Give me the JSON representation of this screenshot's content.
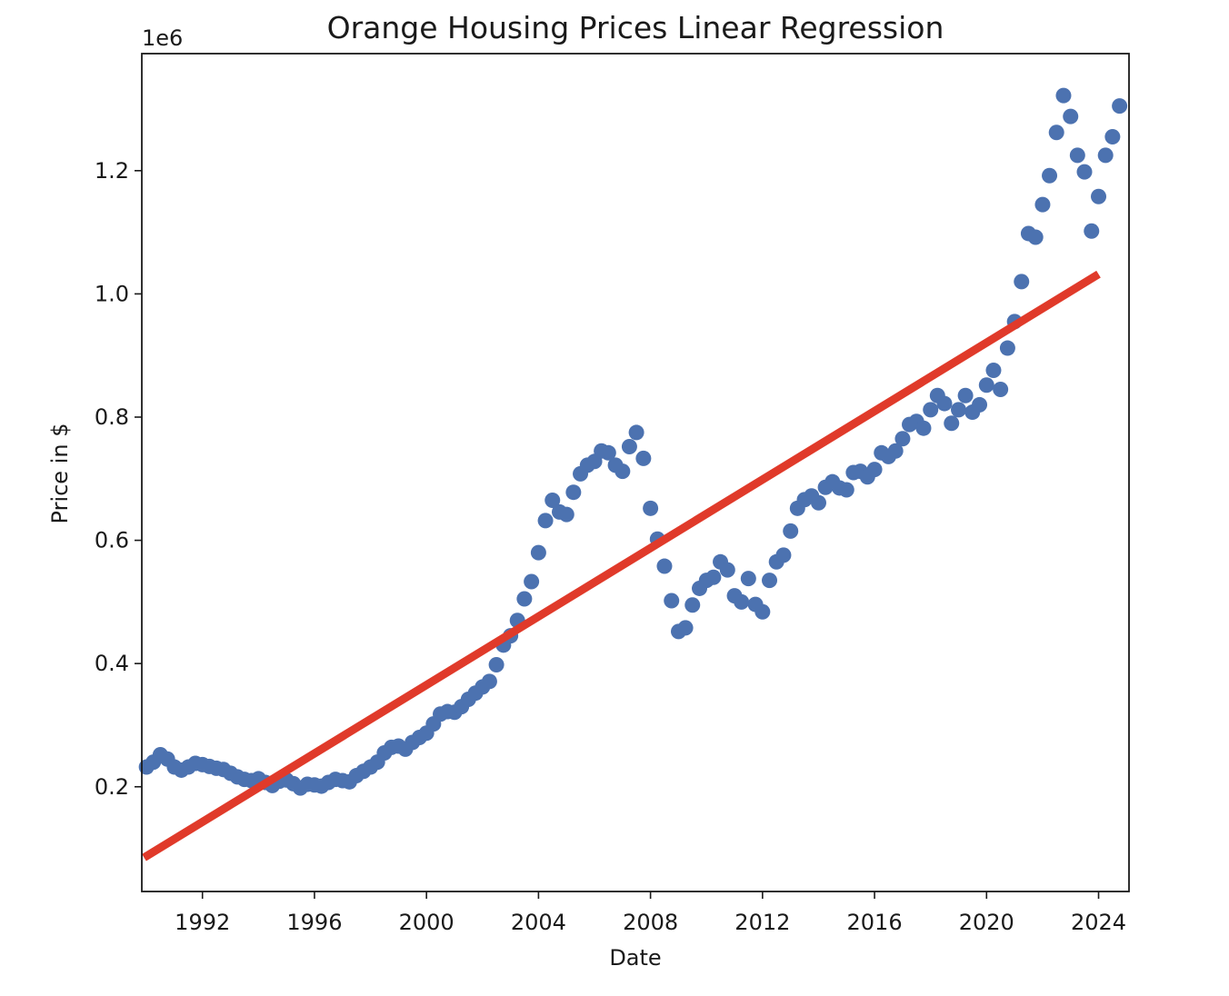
{
  "chart_data": {
    "type": "scatter",
    "title": "Orange Housing Prices Linear Regression",
    "xlabel": "Date",
    "ylabel": "Price in $",
    "y_offset_label": "1e6",
    "xlim": [
      "1989-11-01",
      "2025-02-01"
    ],
    "ylim": [
      0.03,
      1.39
    ],
    "x_ticks": [
      {
        "value": "1992-01-01",
        "label": "1992"
      },
      {
        "value": "1996-01-01",
        "label": "1996"
      },
      {
        "value": "2000-01-01",
        "label": "2000"
      },
      {
        "value": "2004-01-01",
        "label": "2004"
      },
      {
        "value": "2008-01-01",
        "label": "2008"
      },
      {
        "value": "2012-01-01",
        "label": "2012"
      },
      {
        "value": "2016-01-01",
        "label": "2016"
      },
      {
        "value": "2020-01-01",
        "label": "2020"
      },
      {
        "value": "2024-01-01",
        "label": "2024"
      }
    ],
    "y_ticks": [
      {
        "value": 0.2,
        "label": "0.2"
      },
      {
        "value": 0.4,
        "label": "0.4"
      },
      {
        "value": 0.6,
        "label": "0.6"
      },
      {
        "value": 0.8,
        "label": "0.8"
      },
      {
        "value": 1.0,
        "label": "1.0"
      },
      {
        "value": 1.2,
        "label": "1.2"
      }
    ],
    "grid": false,
    "series": [
      {
        "kind": "scatter",
        "color": "#4c72b0",
        "points": [
          [
            "1990-01-01",
            0.232
          ],
          [
            "1990-04-01",
            0.24
          ],
          [
            "1990-07-01",
            0.252
          ],
          [
            "1990-10-01",
            0.245
          ],
          [
            "1991-01-01",
            0.232
          ],
          [
            "1991-04-01",
            0.227
          ],
          [
            "1991-07-01",
            0.232
          ],
          [
            "1991-10-01",
            0.238
          ],
          [
            "1992-01-01",
            0.236
          ],
          [
            "1992-04-01",
            0.233
          ],
          [
            "1992-07-01",
            0.23
          ],
          [
            "1992-10-01",
            0.228
          ],
          [
            "1993-01-01",
            0.222
          ],
          [
            "1993-04-01",
            0.216
          ],
          [
            "1993-07-01",
            0.212
          ],
          [
            "1993-10-01",
            0.21
          ],
          [
            "1994-01-01",
            0.213
          ],
          [
            "1994-04-01",
            0.207
          ],
          [
            "1994-07-01",
            0.202
          ],
          [
            "1994-10-01",
            0.209
          ],
          [
            "1995-01-01",
            0.211
          ],
          [
            "1995-04-01",
            0.205
          ],
          [
            "1995-07-01",
            0.198
          ],
          [
            "1995-10-01",
            0.204
          ],
          [
            "1996-01-01",
            0.203
          ],
          [
            "1996-04-01",
            0.201
          ],
          [
            "1996-07-01",
            0.207
          ],
          [
            "1996-10-01",
            0.212
          ],
          [
            "1997-01-01",
            0.21
          ],
          [
            "1997-04-01",
            0.208
          ],
          [
            "1997-07-01",
            0.218
          ],
          [
            "1997-10-01",
            0.225
          ],
          [
            "1998-01-01",
            0.232
          ],
          [
            "1998-04-01",
            0.24
          ],
          [
            "1998-07-01",
            0.255
          ],
          [
            "1998-10-01",
            0.264
          ],
          [
            "1999-01-01",
            0.266
          ],
          [
            "1999-04-01",
            0.261
          ],
          [
            "1999-07-01",
            0.272
          ],
          [
            "1999-10-01",
            0.28
          ],
          [
            "2000-01-01",
            0.287
          ],
          [
            "2000-04-01",
            0.302
          ],
          [
            "2000-07-01",
            0.318
          ],
          [
            "2000-10-01",
            0.322
          ],
          [
            "2001-01-01",
            0.321
          ],
          [
            "2001-04-01",
            0.33
          ],
          [
            "2001-07-01",
            0.342
          ],
          [
            "2001-10-01",
            0.352
          ],
          [
            "2002-01-01",
            0.362
          ],
          [
            "2002-04-01",
            0.371
          ],
          [
            "2002-07-01",
            0.398
          ],
          [
            "2002-10-01",
            0.43
          ],
          [
            "2003-01-01",
            0.445
          ],
          [
            "2003-04-01",
            0.47
          ],
          [
            "2003-07-01",
            0.505
          ],
          [
            "2003-10-01",
            0.533
          ],
          [
            "2004-01-01",
            0.58
          ],
          [
            "2004-04-01",
            0.632
          ],
          [
            "2004-07-01",
            0.665
          ],
          [
            "2004-10-01",
            0.646
          ],
          [
            "2005-01-01",
            0.642
          ],
          [
            "2005-04-01",
            0.678
          ],
          [
            "2005-07-01",
            0.708
          ],
          [
            "2005-10-01",
            0.722
          ],
          [
            "2006-01-01",
            0.728
          ],
          [
            "2006-04-01",
            0.745
          ],
          [
            "2006-07-01",
            0.742
          ],
          [
            "2006-10-01",
            0.722
          ],
          [
            "2007-01-01",
            0.712
          ],
          [
            "2007-04-01",
            0.752
          ],
          [
            "2007-07-01",
            0.775
          ],
          [
            "2007-10-01",
            0.733
          ],
          [
            "2008-01-01",
            0.652
          ],
          [
            "2008-04-01",
            0.602
          ],
          [
            "2008-07-01",
            0.558
          ],
          [
            "2008-10-01",
            0.502
          ],
          [
            "2009-01-01",
            0.452
          ],
          [
            "2009-04-01",
            0.458
          ],
          [
            "2009-07-01",
            0.495
          ],
          [
            "2009-10-01",
            0.522
          ],
          [
            "2010-01-01",
            0.535
          ],
          [
            "2010-04-01",
            0.54
          ],
          [
            "2010-07-01",
            0.565
          ],
          [
            "2010-10-01",
            0.552
          ],
          [
            "2011-01-01",
            0.51
          ],
          [
            "2011-04-01",
            0.5
          ],
          [
            "2011-07-01",
            0.538
          ],
          [
            "2011-10-01",
            0.496
          ],
          [
            "2012-01-01",
            0.484
          ],
          [
            "2012-04-01",
            0.535
          ],
          [
            "2012-07-01",
            0.565
          ],
          [
            "2012-10-01",
            0.576
          ],
          [
            "2013-01-01",
            0.615
          ],
          [
            "2013-04-01",
            0.652
          ],
          [
            "2013-07-01",
            0.666
          ],
          [
            "2013-10-01",
            0.672
          ],
          [
            "2014-01-01",
            0.661
          ],
          [
            "2014-04-01",
            0.686
          ],
          [
            "2014-07-01",
            0.695
          ],
          [
            "2014-10-01",
            0.685
          ],
          [
            "2015-01-01",
            0.682
          ],
          [
            "2015-04-01",
            0.71
          ],
          [
            "2015-07-01",
            0.712
          ],
          [
            "2015-10-01",
            0.703
          ],
          [
            "2016-01-01",
            0.715
          ],
          [
            "2016-04-01",
            0.742
          ],
          [
            "2016-07-01",
            0.736
          ],
          [
            "2016-10-01",
            0.745
          ],
          [
            "2017-01-01",
            0.765
          ],
          [
            "2017-04-01",
            0.788
          ],
          [
            "2017-07-01",
            0.793
          ],
          [
            "2017-10-01",
            0.782
          ],
          [
            "2018-01-01",
            0.812
          ],
          [
            "2018-04-01",
            0.835
          ],
          [
            "2018-07-01",
            0.822
          ],
          [
            "2018-10-01",
            0.79
          ],
          [
            "2019-01-01",
            0.812
          ],
          [
            "2019-04-01",
            0.835
          ],
          [
            "2019-07-01",
            0.808
          ],
          [
            "2019-10-01",
            0.82
          ],
          [
            "2020-01-01",
            0.852
          ],
          [
            "2020-04-01",
            0.876
          ],
          [
            "2020-07-01",
            0.845
          ],
          [
            "2020-10-01",
            0.912
          ],
          [
            "2021-01-01",
            0.955
          ],
          [
            "2021-04-01",
            1.02
          ],
          [
            "2021-07-01",
            1.098
          ],
          [
            "2021-10-01",
            1.092
          ],
          [
            "2022-01-01",
            1.145
          ],
          [
            "2022-04-01",
            1.192
          ],
          [
            "2022-07-01",
            1.262
          ],
          [
            "2022-10-01",
            1.322
          ],
          [
            "2023-01-01",
            1.288
          ],
          [
            "2023-04-01",
            1.225
          ],
          [
            "2023-07-01",
            1.198
          ],
          [
            "2023-10-01",
            1.102
          ],
          [
            "2024-01-01",
            1.158
          ],
          [
            "2024-04-01",
            1.225
          ],
          [
            "2024-07-01",
            1.255
          ],
          [
            "2024-10-01",
            1.305
          ]
        ]
      },
      {
        "kind": "line",
        "color": "#e03a2a",
        "points": [
          [
            "1989-12-01",
            0.085
          ],
          [
            "2024-01-01",
            1.032
          ]
        ]
      }
    ]
  }
}
